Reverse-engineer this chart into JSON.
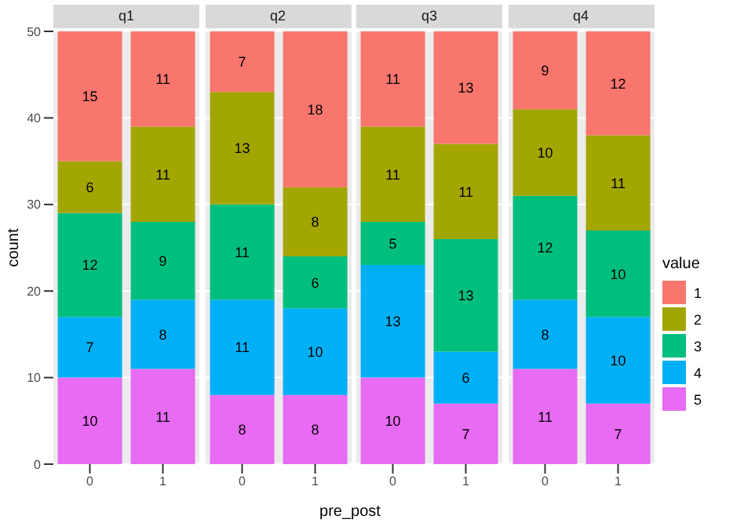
{
  "chart_data": [
    {
      "type": "bar",
      "title": "q1",
      "ylabel": "count",
      "categories": [
        "0",
        "1"
      ],
      "stacked": true,
      "ylim": [
        0,
        50
      ],
      "yticks": [
        0,
        10,
        20,
        30,
        40,
        50
      ],
      "grid": "y",
      "data_labels": true,
      "series": [
        {
          "color": "#e76bf3",
          "values": [
            10,
            11
          ]
        },
        {
          "color": "#00b0f6",
          "values": [
            7,
            8
          ]
        },
        {
          "color": "#00bf7d",
          "values": [
            12,
            9
          ]
        },
        {
          "color": "#a3a500",
          "values": [
            6,
            11
          ]
        },
        {
          "color": "#f8766d",
          "values": [
            15,
            11
          ]
        }
      ]
    },
    {
      "type": "bar",
      "title": "q2",
      "xlabel": "pre_post",
      "categories": [
        "0",
        "1"
      ],
      "stacked": true,
      "ylim": [
        0,
        50
      ],
      "yticks": [
        0,
        10,
        20,
        30,
        40,
        50
      ],
      "grid": "y",
      "data_labels": true,
      "tick_labels": "x",
      "series": [
        {
          "color": "#e76bf3",
          "values": [
            8,
            8
          ]
        },
        {
          "color": "#00b0f6",
          "values": [
            11,
            10
          ]
        },
        {
          "color": "#00bf7d",
          "values": [
            11,
            6
          ]
        },
        {
          "color": "#a3a500",
          "values": [
            13,
            8
          ]
        },
        {
          "color": "#f8766d",
          "values": [
            7,
            18
          ]
        }
      ]
    },
    {
      "type": "bar",
      "title": "q3",
      "categories": [
        "0",
        "1"
      ],
      "stacked": true,
      "ylim": [
        0,
        50
      ],
      "yticks": [
        0,
        10,
        20,
        30,
        40,
        50
      ],
      "grid": "y",
      "data_labels": true,
      "tick_labels": "x",
      "series": [
        {
          "color": "#e76bf3",
          "values": [
            10,
            7
          ]
        },
        {
          "color": "#00b0f6",
          "values": [
            13,
            6
          ]
        },
        {
          "color": "#00bf7d",
          "values": [
            5,
            13
          ]
        },
        {
          "color": "#a3a500",
          "values": [
            11,
            11
          ]
        },
        {
          "color": "#f8766d",
          "values": [
            11,
            13
          ]
        }
      ]
    },
    {
      "type": "bar",
      "title": "q4",
      "categories": [
        "0",
        "1"
      ],
      "stacked": true,
      "ylim": [
        0,
        50
      ],
      "yticks": [
        0,
        10,
        20,
        30,
        40,
        50
      ],
      "grid": "y",
      "data_labels": true,
      "tick_labels": "x",
      "legend": "right",
      "legend_title": "value",
      "series": [
        {
          "name": "5",
          "color": "#e76bf3",
          "values": [
            11,
            7
          ]
        },
        {
          "name": "4",
          "color": "#00b0f6",
          "values": [
            8,
            10
          ]
        },
        {
          "name": "3",
          "color": "#00bf7d",
          "values": [
            12,
            10
          ]
        },
        {
          "name": "2",
          "color": "#a3a500",
          "values": [
            10,
            11
          ]
        },
        {
          "name": "1",
          "color": "#f8766d",
          "values": [
            9,
            12
          ]
        }
      ]
    }
  ]
}
